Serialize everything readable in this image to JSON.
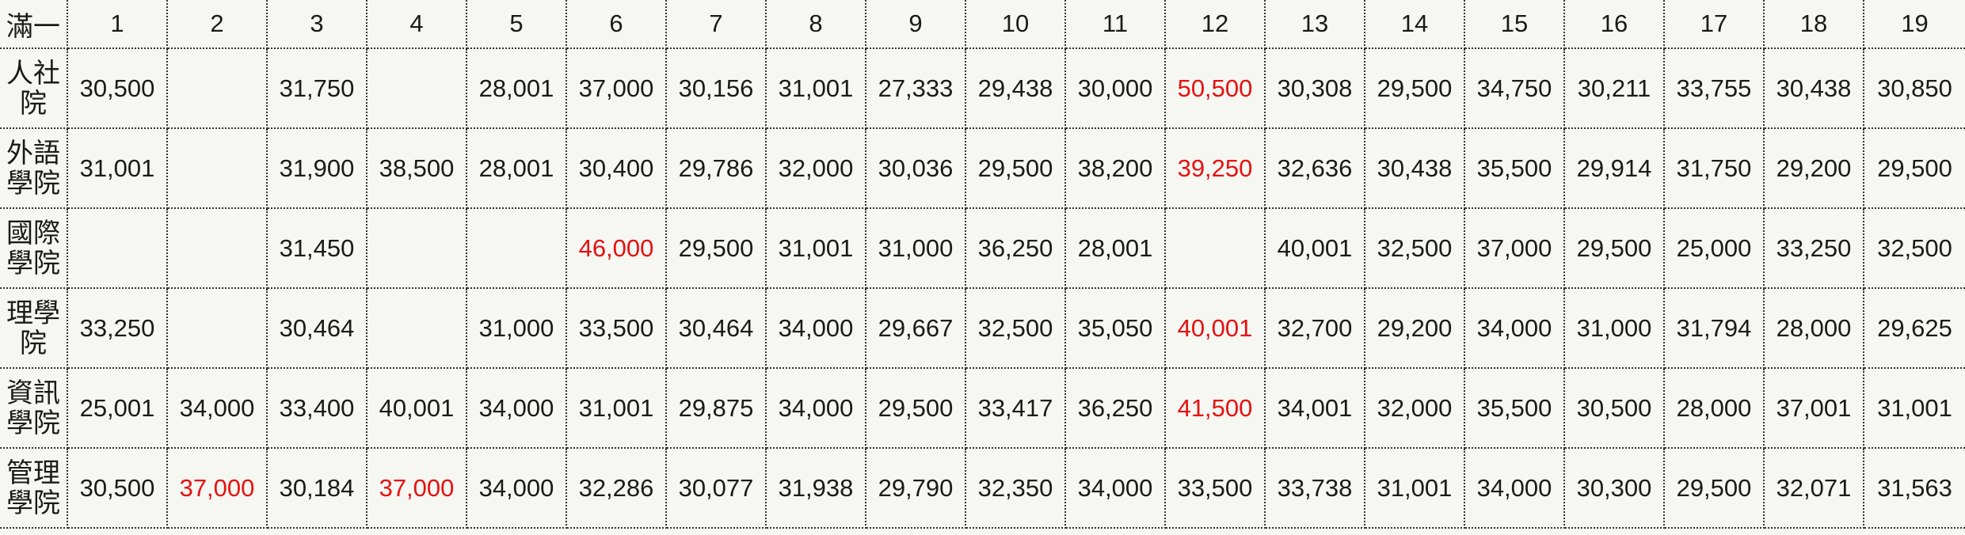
{
  "corner": "滿一",
  "columns": [
    "1",
    "2",
    "3",
    "4",
    "5",
    "6",
    "7",
    "8",
    "9",
    "10",
    "11",
    "12",
    "13",
    "14",
    "15",
    "16",
    "17",
    "18",
    "19"
  ],
  "highlight_color": "#e81010",
  "rows": [
    {
      "label": "人社院",
      "cells": [
        {
          "v": "30,500",
          "hl": false
        },
        {
          "v": "",
          "hl": false
        },
        {
          "v": "31,750",
          "hl": false
        },
        {
          "v": "",
          "hl": false
        },
        {
          "v": "28,001",
          "hl": false
        },
        {
          "v": "37,000",
          "hl": false
        },
        {
          "v": "30,156",
          "hl": false
        },
        {
          "v": "31,001",
          "hl": false
        },
        {
          "v": "27,333",
          "hl": false
        },
        {
          "v": "29,438",
          "hl": false
        },
        {
          "v": "30,000",
          "hl": false
        },
        {
          "v": "50,500",
          "hl": true
        },
        {
          "v": "30,308",
          "hl": false
        },
        {
          "v": "29,500",
          "hl": false
        },
        {
          "v": "34,750",
          "hl": false
        },
        {
          "v": "30,211",
          "hl": false
        },
        {
          "v": "33,755",
          "hl": false
        },
        {
          "v": "30,438",
          "hl": false
        },
        {
          "v": "30,850",
          "hl": false
        }
      ]
    },
    {
      "label": "外語學院",
      "cells": [
        {
          "v": "31,001",
          "hl": false
        },
        {
          "v": "",
          "hl": false
        },
        {
          "v": "31,900",
          "hl": false
        },
        {
          "v": "38,500",
          "hl": false
        },
        {
          "v": "28,001",
          "hl": false
        },
        {
          "v": "30,400",
          "hl": false
        },
        {
          "v": "29,786",
          "hl": false
        },
        {
          "v": "32,000",
          "hl": false
        },
        {
          "v": "30,036",
          "hl": false
        },
        {
          "v": "29,500",
          "hl": false
        },
        {
          "v": "38,200",
          "hl": false
        },
        {
          "v": "39,250",
          "hl": true
        },
        {
          "v": "32,636",
          "hl": false
        },
        {
          "v": "30,438",
          "hl": false
        },
        {
          "v": "35,500",
          "hl": false
        },
        {
          "v": "29,914",
          "hl": false
        },
        {
          "v": "31,750",
          "hl": false
        },
        {
          "v": "29,200",
          "hl": false
        },
        {
          "v": "29,500",
          "hl": false
        }
      ]
    },
    {
      "label": "國際學院",
      "cells": [
        {
          "v": "",
          "hl": false
        },
        {
          "v": "",
          "hl": false
        },
        {
          "v": "31,450",
          "hl": false
        },
        {
          "v": "",
          "hl": false
        },
        {
          "v": "",
          "hl": false
        },
        {
          "v": "46,000",
          "hl": true
        },
        {
          "v": "29,500",
          "hl": false
        },
        {
          "v": "31,001",
          "hl": false
        },
        {
          "v": "31,000",
          "hl": false
        },
        {
          "v": "36,250",
          "hl": false
        },
        {
          "v": "28,001",
          "hl": false
        },
        {
          "v": "",
          "hl": false
        },
        {
          "v": "40,001",
          "hl": false
        },
        {
          "v": "32,500",
          "hl": false
        },
        {
          "v": "37,000",
          "hl": false
        },
        {
          "v": "29,500",
          "hl": false
        },
        {
          "v": "25,000",
          "hl": false
        },
        {
          "v": "33,250",
          "hl": false
        },
        {
          "v": "32,500",
          "hl": false
        }
      ]
    },
    {
      "label": "理學院",
      "cells": [
        {
          "v": "33,250",
          "hl": false
        },
        {
          "v": "",
          "hl": false
        },
        {
          "v": "30,464",
          "hl": false
        },
        {
          "v": "",
          "hl": false
        },
        {
          "v": "31,000",
          "hl": false
        },
        {
          "v": "33,500",
          "hl": false
        },
        {
          "v": "30,464",
          "hl": false
        },
        {
          "v": "34,000",
          "hl": false
        },
        {
          "v": "29,667",
          "hl": false
        },
        {
          "v": "32,500",
          "hl": false
        },
        {
          "v": "35,050",
          "hl": false
        },
        {
          "v": "40,001",
          "hl": true
        },
        {
          "v": "32,700",
          "hl": false
        },
        {
          "v": "29,200",
          "hl": false
        },
        {
          "v": "34,000",
          "hl": false
        },
        {
          "v": "31,000",
          "hl": false
        },
        {
          "v": "31,794",
          "hl": false
        },
        {
          "v": "28,000",
          "hl": false
        },
        {
          "v": "29,625",
          "hl": false
        }
      ]
    },
    {
      "label": "資訊學院",
      "cells": [
        {
          "v": "25,001",
          "hl": false
        },
        {
          "v": "34,000",
          "hl": false
        },
        {
          "v": "33,400",
          "hl": false
        },
        {
          "v": "40,001",
          "hl": false
        },
        {
          "v": "34,000",
          "hl": false
        },
        {
          "v": "31,001",
          "hl": false
        },
        {
          "v": "29,875",
          "hl": false
        },
        {
          "v": "34,000",
          "hl": false
        },
        {
          "v": "29,500",
          "hl": false
        },
        {
          "v": "33,417",
          "hl": false
        },
        {
          "v": "36,250",
          "hl": false
        },
        {
          "v": "41,500",
          "hl": true
        },
        {
          "v": "34,001",
          "hl": false
        },
        {
          "v": "32,000",
          "hl": false
        },
        {
          "v": "35,500",
          "hl": false
        },
        {
          "v": "30,500",
          "hl": false
        },
        {
          "v": "28,000",
          "hl": false
        },
        {
          "v": "37,001",
          "hl": false
        },
        {
          "v": "31,001",
          "hl": false
        }
      ]
    },
    {
      "label": "管理學院",
      "cells": [
        {
          "v": "30,500",
          "hl": false
        },
        {
          "v": "37,000",
          "hl": true
        },
        {
          "v": "30,184",
          "hl": false
        },
        {
          "v": "37,000",
          "hl": true
        },
        {
          "v": "34,000",
          "hl": false
        },
        {
          "v": "32,286",
          "hl": false
        },
        {
          "v": "30,077",
          "hl": false
        },
        {
          "v": "31,938",
          "hl": false
        },
        {
          "v": "29,790",
          "hl": false
        },
        {
          "v": "32,350",
          "hl": false
        },
        {
          "v": "34,000",
          "hl": false
        },
        {
          "v": "33,500",
          "hl": false
        },
        {
          "v": "33,738",
          "hl": false
        },
        {
          "v": "31,001",
          "hl": false
        },
        {
          "v": "34,000",
          "hl": false
        },
        {
          "v": "30,300",
          "hl": false
        },
        {
          "v": "29,500",
          "hl": false
        },
        {
          "v": "32,071",
          "hl": false
        },
        {
          "v": "31,563",
          "hl": false
        }
      ]
    }
  ]
}
